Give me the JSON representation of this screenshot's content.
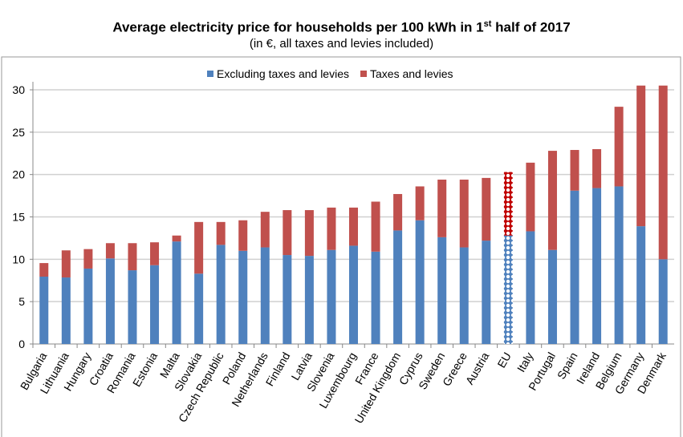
{
  "chart_data": {
    "type": "bar",
    "stacked": true,
    "title_main": "Average electricity price for households per 100 kWh in 1",
    "title_sup": "st",
    "title_end": " half of 2017",
    "subtitle": "(in €, all taxes and levies included)",
    "xlabel": "",
    "ylabel": "",
    "ylim": [
      0,
      30
    ],
    "yticks": [
      0,
      5,
      10,
      15,
      20,
      25,
      30
    ],
    "grid": true,
    "legend_position": "top-center",
    "categories": [
      "Bulgaria",
      "Lithuania",
      "Hungary",
      "Croatia",
      "Romania",
      "Estonia",
      "Malta",
      "Slovakia",
      "Czech Republic",
      "Poland",
      "Netherlands",
      "Finland",
      "Latvia",
      "Slovenia",
      "Luxembourg",
      "France",
      "United Kingdom",
      "Cyprus",
      "Sweden",
      "Greece",
      "Austria",
      "EU",
      "Italy",
      "Portugal",
      "Spain",
      "Ireland",
      "Belgium",
      "Germany",
      "Denmark"
    ],
    "highlight_category": "EU",
    "series": [
      {
        "name": "Excluding taxes and levies",
        "color": "#4f81bd",
        "values": [
          7.95,
          7.85,
          8.9,
          10.1,
          8.7,
          9.3,
          12.1,
          8.3,
          11.7,
          11.0,
          11.4,
          10.5,
          10.4,
          11.1,
          11.6,
          10.9,
          13.4,
          14.6,
          12.6,
          11.4,
          12.2,
          12.8,
          13.3,
          11.1,
          18.1,
          18.4,
          18.6,
          13.9,
          10.0
        ]
      },
      {
        "name": "Taxes and levies",
        "color": "#c0504d",
        "values": [
          1.6,
          3.2,
          2.3,
          1.8,
          3.2,
          2.7,
          0.7,
          6.1,
          2.7,
          3.6,
          4.2,
          5.3,
          5.4,
          5.0,
          4.5,
          5.9,
          4.3,
          4.0,
          6.8,
          8.0,
          7.4,
          7.5,
          8.1,
          11.7,
          4.8,
          4.6,
          9.4,
          16.6,
          20.5
        ]
      }
    ]
  }
}
